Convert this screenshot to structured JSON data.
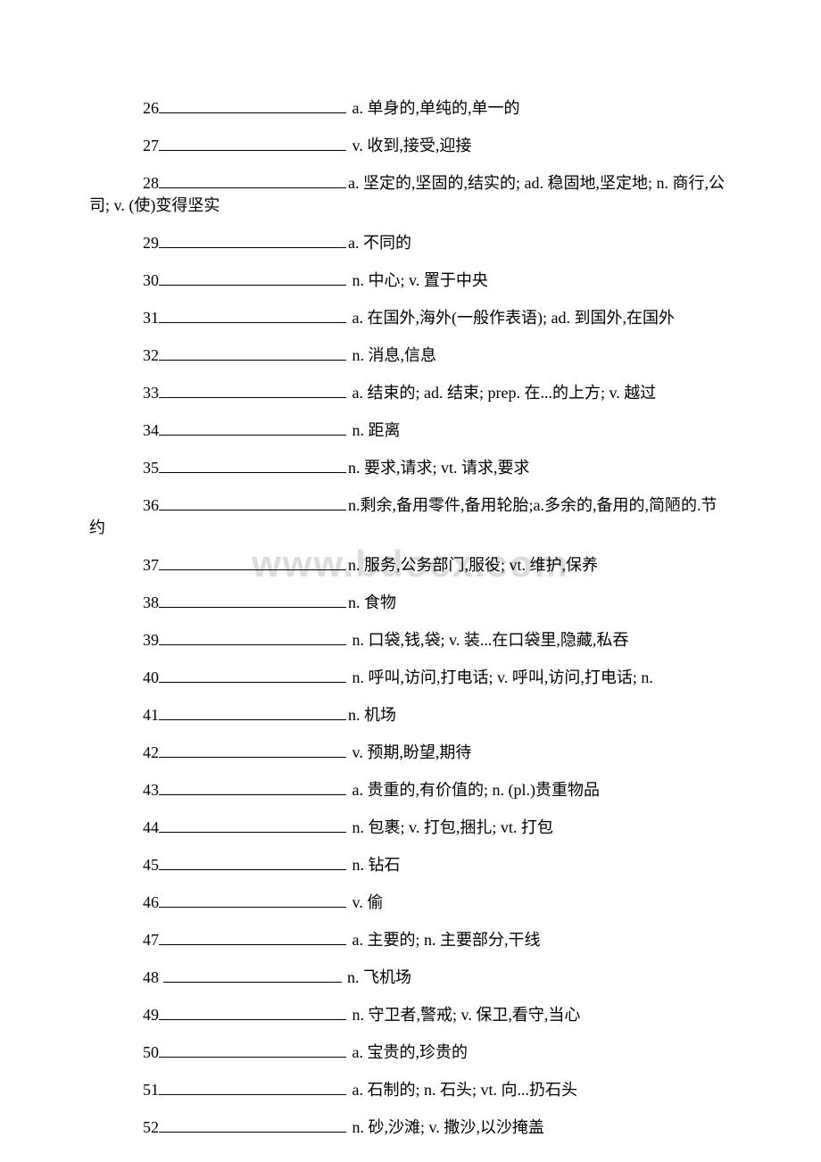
{
  "watermark": "www.bdocx.com",
  "entries": [
    {
      "num": "26",
      "def": " a. 单身的,单纯的,单一的",
      "cont": null
    },
    {
      "num": "27",
      "def": " v. 收到,接受,迎接",
      "cont": null
    },
    {
      "num": "28",
      "def": "a. 坚定的,坚固的,结实的; ad. 稳固地,坚定地; n. 商行,公",
      "cont": "司; v. (使)变得坚实"
    },
    {
      "num": "29",
      "def": "a. 不同的",
      "cont": null
    },
    {
      "num": "30",
      "def": " n. 中心; v. 置于中央",
      "cont": null
    },
    {
      "num": "31",
      "def": " a. 在国外,海外(一般作表语); ad. 到国外,在国外",
      "cont": null
    },
    {
      "num": "32",
      "def": " n. 消息,信息",
      "cont": null
    },
    {
      "num": "33",
      "def": " a. 结束的; ad. 结束; prep. 在...的上方; v. 越过",
      "cont": null
    },
    {
      "num": "34",
      "def": " n. 距离",
      "cont": null
    },
    {
      "num": "35",
      "def": "n. 要求,请求; vt. 请求,要求",
      "cont": null
    },
    {
      "num": "36",
      "def": "n.剩余,备用零件,备用轮胎;a.多余的,备用的,简陋的.节",
      "cont": "约"
    },
    {
      "num": "37",
      "def": "n. 服务,公务部门,服役; vt. 维护,保养",
      "cont": null
    },
    {
      "num": "38",
      "def": "n. 食物",
      "cont": null
    },
    {
      "num": "39",
      "def": " n. 口袋,钱,袋; v. 装...在口袋里,隐藏,私吞",
      "cont": null
    },
    {
      "num": "40",
      "def": " n. 呼叫,访问,打电话; v. 呼叫,访问,打电话; n.",
      "cont": null
    },
    {
      "num": "41",
      "def": "n. 机场",
      "cont": null
    },
    {
      "num": "42",
      "def": " v. 预期,盼望,期待",
      "cont": null
    },
    {
      "num": "43",
      "def": " a. 贵重的,有价值的; n. (pl.)贵重物品",
      "cont": null
    },
    {
      "num": "44",
      "def": " n. 包裹; v. 打包,捆扎; vt. 打包",
      "cont": null
    },
    {
      "num": "45",
      "def": " n. 钻石",
      "cont": null
    },
    {
      "num": "46",
      "def": " v. 偷",
      "cont": null
    },
    {
      "num": "47",
      "def": " a. 主要的; n. 主要部分,干线",
      "cont": null
    },
    {
      "num": "48 ",
      "def": " n. 飞机场",
      "cont": null
    },
    {
      "num": "49",
      "def": " n. 守卫者,警戒; v. 保卫,看守,当心",
      "cont": null
    },
    {
      "num": "50",
      "def": " a. 宝贵的,珍贵的",
      "cont": null
    },
    {
      "num": "51",
      "def": " a. 石制的; n. 石头; vt. 向...扔石头",
      "cont": null
    },
    {
      "num": "52",
      "def": " n. 砂,沙滩; v. 撒沙,以沙掩盖",
      "cont": null
    }
  ]
}
